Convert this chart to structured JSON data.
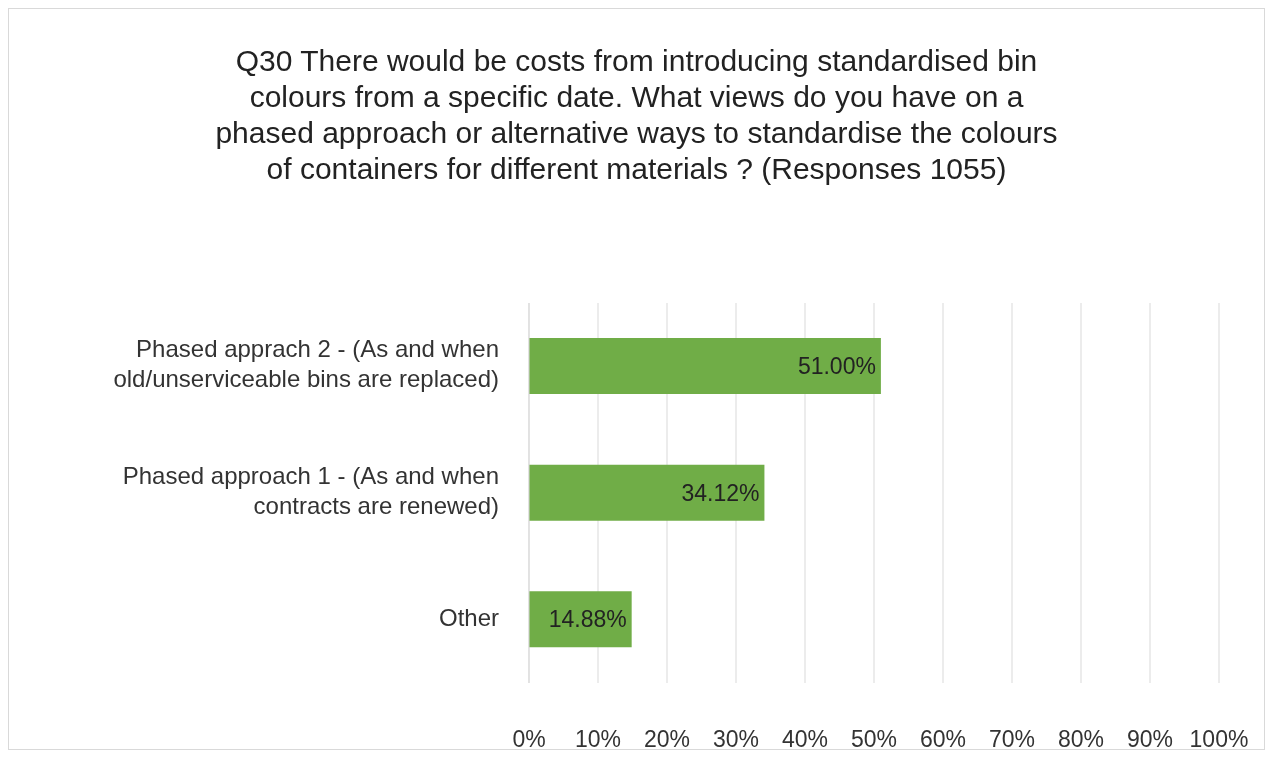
{
  "chart_data": {
    "type": "bar",
    "orientation": "horizontal",
    "title": "Q30 There would be costs from introducing standardised bin colours from a specific date. What views do you have on a phased approach or alternative ways to standardise the colours of containers for different materials ? (Responses 1055)",
    "categories": [
      "Phased apprach 2 - (As and when old/unserviceable bins are replaced)",
      "Phased approach 1 - (As and when contracts are renewed)",
      "Other"
    ],
    "values": [
      51,
      34.12,
      14.88
    ],
    "value_labels": [
      "51.00%",
      "34.12%",
      "14.88%"
    ],
    "color": "#70ad47",
    "xlim": [
      0,
      100
    ],
    "xticks": [
      {
        "value": 0,
        "label": "0%"
      },
      {
        "value": 10,
        "label": "10%"
      },
      {
        "value": 20,
        "label": "20%"
      },
      {
        "value": 30,
        "label": "30%"
      },
      {
        "value": 40,
        "label": "40%"
      },
      {
        "value": 50,
        "label": "50%"
      },
      {
        "value": 60,
        "label": "60%"
      },
      {
        "value": 70,
        "label": "70%"
      },
      {
        "value": 80,
        "label": "80%"
      },
      {
        "value": 90,
        "label": "90%"
      },
      {
        "value": 100,
        "label": "100%"
      }
    ],
    "grid": "x"
  }
}
